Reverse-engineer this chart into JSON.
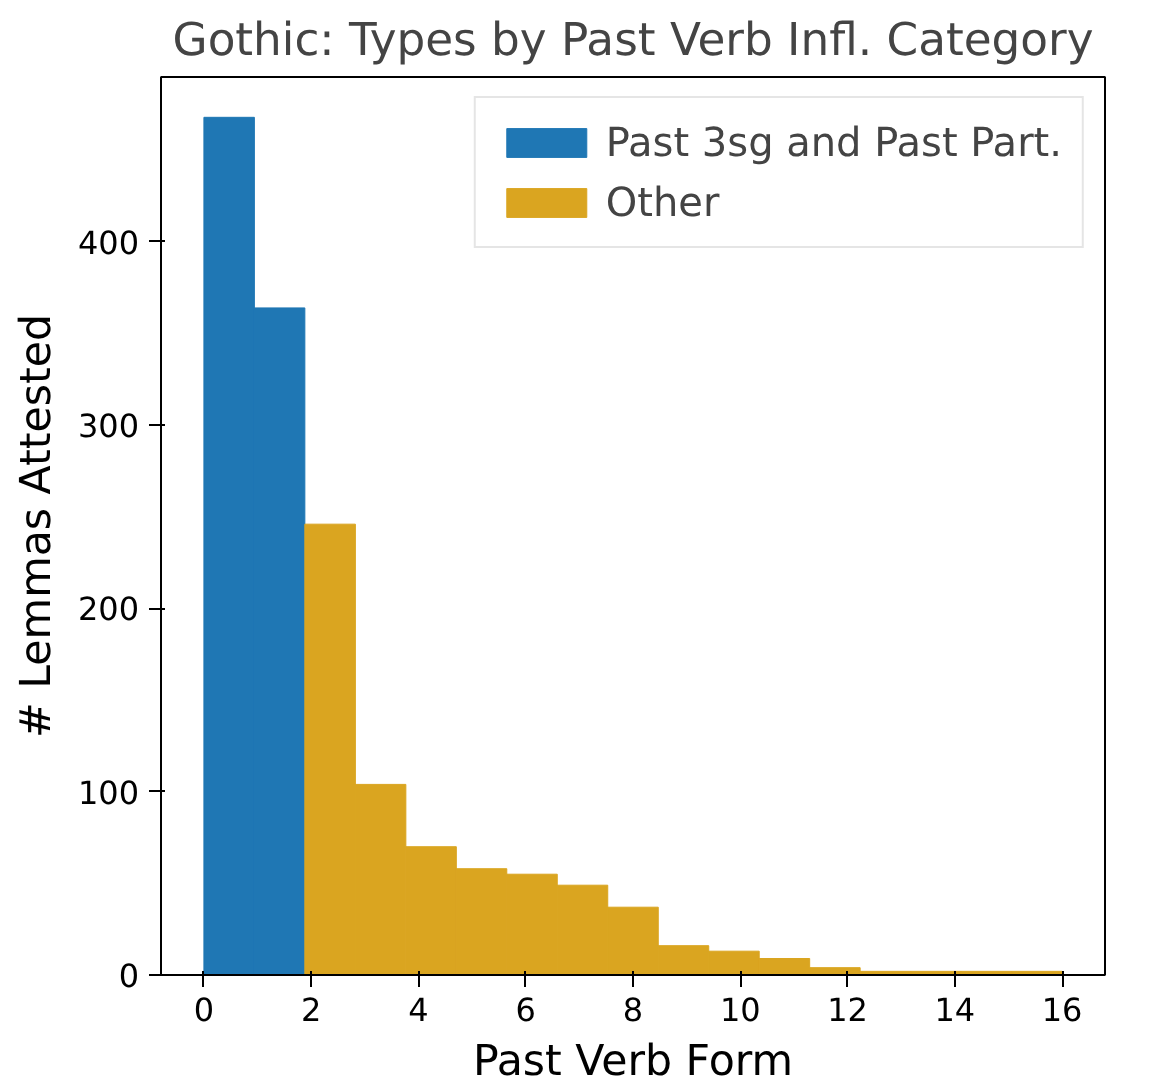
{
  "chart_data": {
    "type": "histogram",
    "title": "Gothic: Types by Past Verb Infl. Category",
    "xlabel": "Past Verb Form",
    "ylabel": "# Lemmas Attested",
    "bins": [
      0,
      0.941,
      1.882,
      2.824,
      3.765,
      4.706,
      5.647,
      6.588,
      7.529,
      8.471,
      9.412,
      10.353,
      11.294,
      12.235,
      13.176,
      14.118,
      15.059,
      16
    ],
    "series": [
      {
        "name": "Past 3sg and Past Part.",
        "color": "#1f77b4",
        "values": [
          468,
          364,
          null,
          null,
          null,
          null,
          null,
          null,
          null,
          null,
          null,
          null,
          null,
          null,
          null,
          null,
          null
        ]
      },
      {
        "name": "Other",
        "color": "#daa520",
        "values": [
          null,
          null,
          246,
          104,
          70,
          58,
          55,
          49,
          37,
          16,
          13,
          9,
          4,
          2,
          2,
          2,
          2
        ]
      }
    ],
    "xlim": [
      -0.8,
      16.8
    ],
    "ylim": [
      0,
      490
    ],
    "xticks": [
      0,
      2,
      4,
      6,
      8,
      10,
      12,
      14,
      16
    ],
    "yticks": [
      0,
      100,
      200,
      300,
      400
    ],
    "legend": "top right"
  }
}
